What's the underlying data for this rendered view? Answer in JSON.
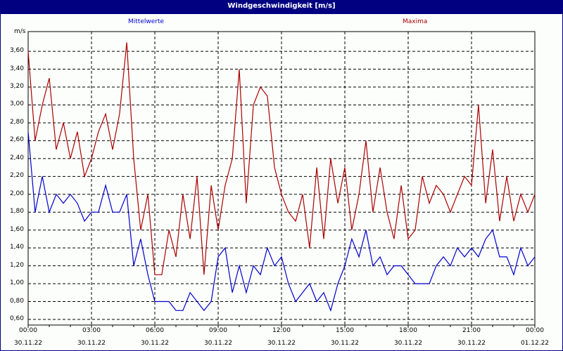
{
  "window": {
    "title": "Windgeschwindigkeit [m/s]"
  },
  "colors": {
    "titlebar": "#000080",
    "mean": "#0000cc",
    "max": "#aa0000",
    "grid": "#000000"
  },
  "chart_data": {
    "type": "line",
    "title": "Windgeschwindigkeit [m/s]",
    "ylabel": "m/s",
    "xlabel": "",
    "ylim": [
      0.6,
      3.75
    ],
    "grid": true,
    "legend": [
      {
        "name": "Mittelwerte",
        "color": "#0000cc",
        "position": "top-left"
      },
      {
        "name": "Maxima",
        "color": "#aa0000",
        "position": "top-right"
      }
    ],
    "y_ticks": [
      "3,60",
      "3,40",
      "3,20",
      "3,00",
      "2,80",
      "2,60",
      "2,40",
      "2,20",
      "2,00",
      "1,80",
      "1,60",
      "1,40",
      "1,20",
      "1,00",
      "0,80",
      "0,60"
    ],
    "x_ticks": [
      {
        "time": "00:00",
        "date": "30.11.22"
      },
      {
        "time": "03:00",
        "date": "30.11.22"
      },
      {
        "time": "06:00",
        "date": "30.11.22"
      },
      {
        "time": "09:00",
        "date": "30.11.22"
      },
      {
        "time": "12:00",
        "date": "30.11.22"
      },
      {
        "time": "15:00",
        "date": "30.11.22"
      },
      {
        "time": "18:00",
        "date": "30.11.22"
      },
      {
        "time": "21:00",
        "date": "30.11.22"
      },
      {
        "time": "00:00",
        "date": "01.12.22"
      }
    ],
    "x_hours": [
      0,
      0.33,
      0.67,
      1,
      1.33,
      1.67,
      2,
      2.33,
      2.67,
      3,
      3.33,
      3.67,
      4,
      4.33,
      4.67,
      5,
      5.33,
      5.67,
      6,
      6.33,
      6.67,
      7,
      7.33,
      7.67,
      8,
      8.33,
      8.67,
      9,
      9.33,
      9.67,
      10,
      10.33,
      10.67,
      11,
      11.33,
      11.67,
      12,
      12.33,
      12.67,
      13,
      13.33,
      13.67,
      14,
      14.33,
      14.67,
      15,
      15.33,
      15.67,
      16,
      16.33,
      16.67,
      17,
      17.33,
      17.67,
      18,
      18.33,
      18.67,
      19,
      19.33,
      19.67,
      20,
      20.33,
      20.67,
      21,
      21.33,
      21.67,
      22,
      22.33,
      22.67,
      23,
      23.33,
      23.67,
      24
    ],
    "series": [
      {
        "name": "Mittelwerte",
        "values": [
          2.7,
          1.8,
          2.2,
          1.8,
          2.0,
          1.9,
          2.0,
          1.9,
          1.7,
          1.8,
          1.8,
          2.1,
          1.8,
          1.8,
          2.0,
          1.2,
          1.5,
          1.1,
          0.8,
          0.8,
          0.8,
          0.7,
          0.7,
          0.9,
          0.8,
          0.7,
          0.8,
          1.3,
          1.4,
          0.9,
          1.2,
          0.9,
          1.2,
          1.1,
          1.4,
          1.2,
          1.3,
          1.0,
          0.8,
          0.9,
          1.0,
          0.8,
          0.9,
          0.7,
          1.0,
          1.2,
          1.5,
          1.3,
          1.6,
          1.2,
          1.3,
          1.1,
          1.2,
          1.2,
          1.1,
          1.0,
          1.0,
          1.0,
          1.2,
          1.3,
          1.2,
          1.4,
          1.3,
          1.4,
          1.3,
          1.5,
          1.6,
          1.3,
          1.3,
          1.1,
          1.4,
          1.2,
          1.3
        ]
      },
      {
        "name": "Maxima",
        "values": [
          3.6,
          2.6,
          3.0,
          3.3,
          2.5,
          2.8,
          2.4,
          2.7,
          2.2,
          2.4,
          2.7,
          2.9,
          2.5,
          2.9,
          3.7,
          2.4,
          1.6,
          2.0,
          1.1,
          1.1,
          1.6,
          1.3,
          2.0,
          1.5,
          2.2,
          1.1,
          2.1,
          1.6,
          2.1,
          2.4,
          3.4,
          1.9,
          3.0,
          3.2,
          3.1,
          2.3,
          2.0,
          1.8,
          1.7,
          2.0,
          1.4,
          2.3,
          1.5,
          2.4,
          1.9,
          2.3,
          1.6,
          2.0,
          2.6,
          1.8,
          2.3,
          1.8,
          1.5,
          2.1,
          1.5,
          1.6,
          2.2,
          1.9,
          2.1,
          2.0,
          1.8,
          2.0,
          2.2,
          2.1,
          3.0,
          1.9,
          2.5,
          1.7,
          2.2,
          1.7,
          2.0,
          1.8,
          2.0
        ]
      }
    ]
  }
}
